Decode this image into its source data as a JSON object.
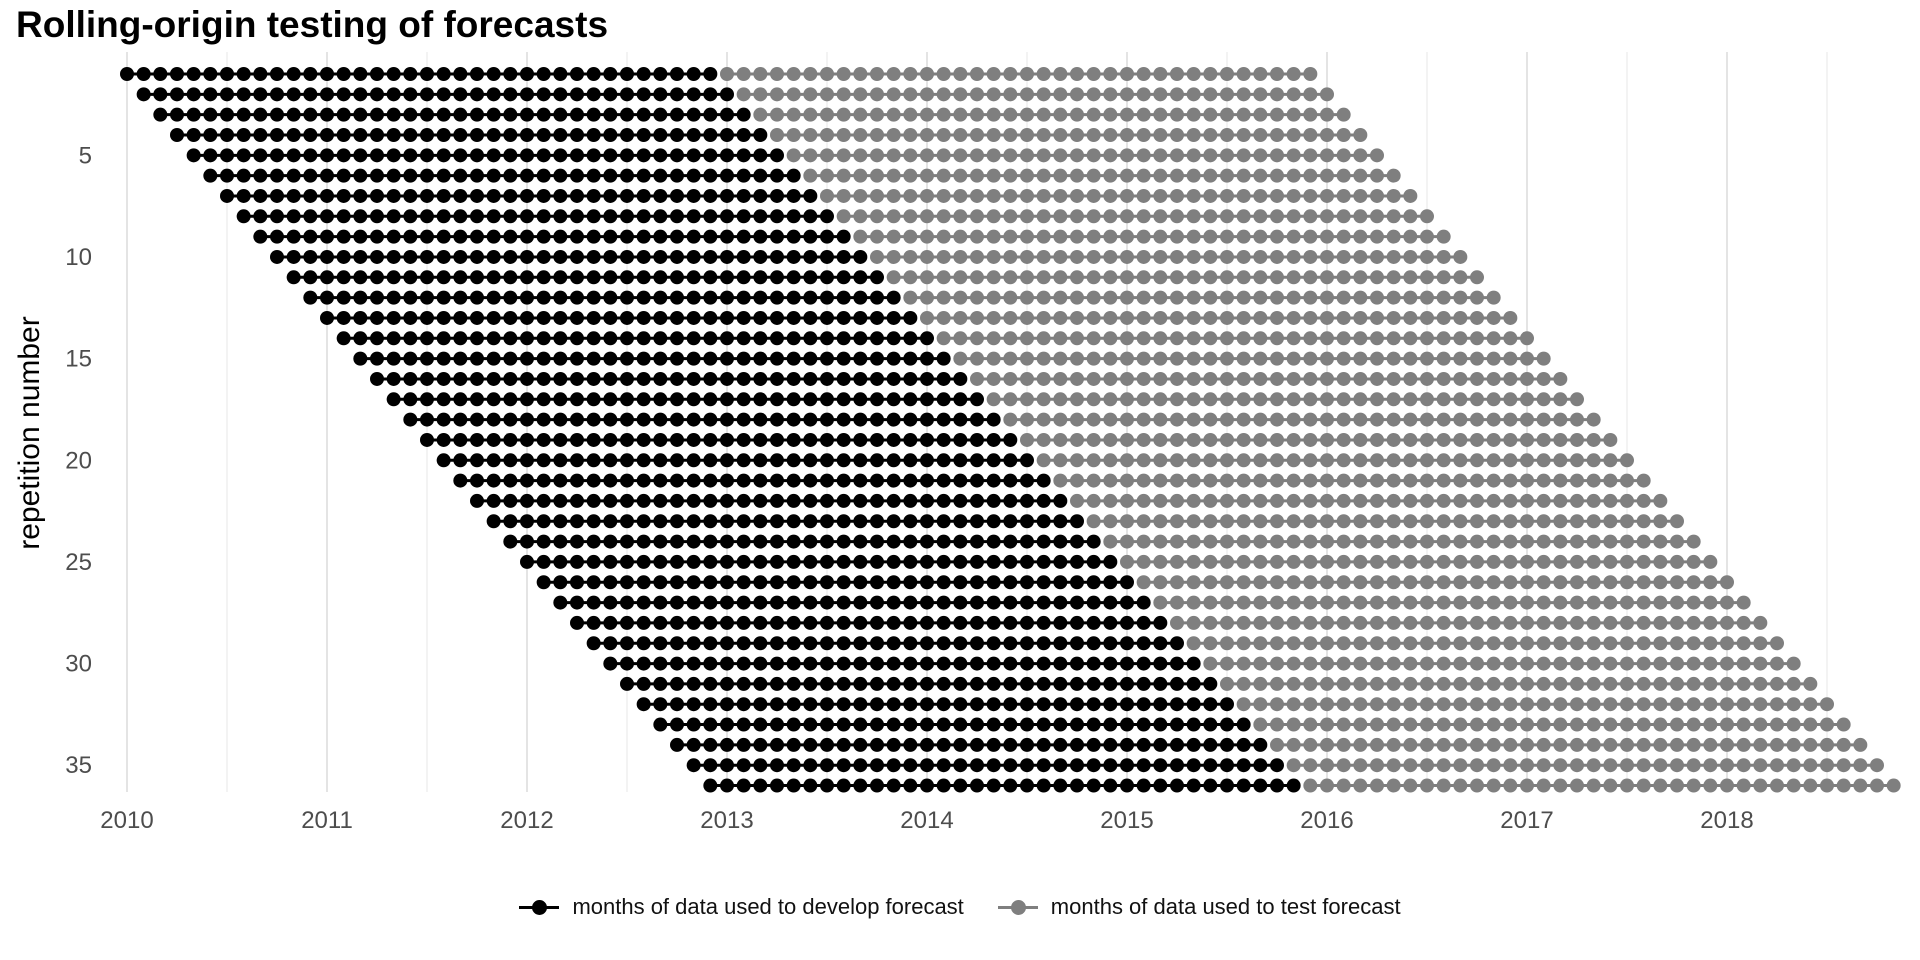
{
  "title": "Rolling-origin testing of forecasts",
  "y_axis": {
    "title": "repetition number",
    "tick_labels": [
      "5",
      "10",
      "15",
      "20",
      "25",
      "30",
      "35"
    ]
  },
  "x_axis": {
    "tick_labels": [
      "2010",
      "2011",
      "2012",
      "2013",
      "2014",
      "2015",
      "2016",
      "2017",
      "2018"
    ]
  },
  "legend": {
    "develop": {
      "label": "months of data used to develop forecast",
      "color": "#000000"
    },
    "test": {
      "label": "months of data used to test forecast",
      "color": "#7f7f7f"
    }
  },
  "colors": {
    "develop": "#000000",
    "test": "#7f7f7f",
    "grid_major": "#e4e4e4",
    "grid_minor": "#efefef",
    "tick_label": "#4d4d4d",
    "background": "#ffffff"
  },
  "chart_data": {
    "type": "scatter",
    "title": "Rolling-origin testing of forecasts",
    "xlabel": "",
    "ylabel": "repetition number",
    "x_unit": "month",
    "x_range": [
      "2010-01",
      "2018-11"
    ],
    "x_tick_labels": [
      "2010",
      "2011",
      "2012",
      "2013",
      "2014",
      "2015",
      "2016",
      "2017",
      "2018"
    ],
    "y_tick_labels": [
      5,
      10,
      15,
      20,
      25,
      30,
      35
    ],
    "y_range": [
      1,
      36
    ],
    "grid": "vertical major and minor gridlines only, no horizontal gridlines, white background",
    "legend_position": "bottom-center",
    "repetitions": 36,
    "origin_step_months": 1,
    "develop_months_per_repetition": 36,
    "test_months_per_repetition": 36,
    "series": [
      {
        "name": "months of data used to develop forecast",
        "role": "develop",
        "color": "#000000"
      },
      {
        "name": "months of data used to test forecast",
        "role": "test",
        "color": "#7f7f7f"
      }
    ],
    "rows": [
      {
        "rep": 1,
        "dev": [
          "2010-01",
          "2012-12"
        ],
        "test": [
          "2013-01",
          "2015-12"
        ]
      },
      {
        "rep": 2,
        "dev": [
          "2010-02",
          "2013-01"
        ],
        "test": [
          "2013-02",
          "2016-01"
        ]
      },
      {
        "rep": 3,
        "dev": [
          "2010-03",
          "2013-02"
        ],
        "test": [
          "2013-03",
          "2016-02"
        ]
      },
      {
        "rep": 4,
        "dev": [
          "2010-04",
          "2013-03"
        ],
        "test": [
          "2013-04",
          "2016-03"
        ]
      },
      {
        "rep": 5,
        "dev": [
          "2010-05",
          "2013-04"
        ],
        "test": [
          "2013-05",
          "2016-04"
        ]
      },
      {
        "rep": 6,
        "dev": [
          "2010-06",
          "2013-05"
        ],
        "test": [
          "2013-06",
          "2016-05"
        ]
      },
      {
        "rep": 7,
        "dev": [
          "2010-07",
          "2013-06"
        ],
        "test": [
          "2013-07",
          "2016-06"
        ]
      },
      {
        "rep": 8,
        "dev": [
          "2010-08",
          "2013-07"
        ],
        "test": [
          "2013-08",
          "2016-07"
        ]
      },
      {
        "rep": 9,
        "dev": [
          "2010-09",
          "2013-08"
        ],
        "test": [
          "2013-09",
          "2016-08"
        ]
      },
      {
        "rep": 10,
        "dev": [
          "2010-10",
          "2013-09"
        ],
        "test": [
          "2013-10",
          "2016-09"
        ]
      },
      {
        "rep": 11,
        "dev": [
          "2010-11",
          "2013-10"
        ],
        "test": [
          "2013-11",
          "2016-10"
        ]
      },
      {
        "rep": 12,
        "dev": [
          "2010-12",
          "2013-11"
        ],
        "test": [
          "2013-12",
          "2016-11"
        ]
      },
      {
        "rep": 13,
        "dev": [
          "2011-01",
          "2013-12"
        ],
        "test": [
          "2014-01",
          "2016-12"
        ]
      },
      {
        "rep": 14,
        "dev": [
          "2011-02",
          "2014-01"
        ],
        "test": [
          "2014-02",
          "2017-01"
        ]
      },
      {
        "rep": 15,
        "dev": [
          "2011-03",
          "2014-02"
        ],
        "test": [
          "2014-03",
          "2017-02"
        ]
      },
      {
        "rep": 16,
        "dev": [
          "2011-04",
          "2014-03"
        ],
        "test": [
          "2014-04",
          "2017-03"
        ]
      },
      {
        "rep": 17,
        "dev": [
          "2011-05",
          "2014-04"
        ],
        "test": [
          "2014-05",
          "2017-04"
        ]
      },
      {
        "rep": 18,
        "dev": [
          "2011-06",
          "2014-05"
        ],
        "test": [
          "2014-06",
          "2017-05"
        ]
      },
      {
        "rep": 19,
        "dev": [
          "2011-07",
          "2014-06"
        ],
        "test": [
          "2014-07",
          "2017-06"
        ]
      },
      {
        "rep": 20,
        "dev": [
          "2011-08",
          "2014-07"
        ],
        "test": [
          "2014-08",
          "2017-07"
        ]
      },
      {
        "rep": 21,
        "dev": [
          "2011-09",
          "2014-08"
        ],
        "test": [
          "2014-09",
          "2017-08"
        ]
      },
      {
        "rep": 22,
        "dev": [
          "2011-10",
          "2014-09"
        ],
        "test": [
          "2014-10",
          "2017-09"
        ]
      },
      {
        "rep": 23,
        "dev": [
          "2011-11",
          "2014-10"
        ],
        "test": [
          "2014-11",
          "2017-10"
        ]
      },
      {
        "rep": 24,
        "dev": [
          "2011-12",
          "2014-11"
        ],
        "test": [
          "2014-12",
          "2017-11"
        ]
      },
      {
        "rep": 25,
        "dev": [
          "2012-01",
          "2014-12"
        ],
        "test": [
          "2015-01",
          "2017-12"
        ]
      },
      {
        "rep": 26,
        "dev": [
          "2012-02",
          "2015-01"
        ],
        "test": [
          "2015-02",
          "2018-01"
        ]
      },
      {
        "rep": 27,
        "dev": [
          "2012-03",
          "2015-02"
        ],
        "test": [
          "2015-03",
          "2018-02"
        ]
      },
      {
        "rep": 28,
        "dev": [
          "2012-04",
          "2015-03"
        ],
        "test": [
          "2015-04",
          "2018-03"
        ]
      },
      {
        "rep": 29,
        "dev": [
          "2012-05",
          "2015-04"
        ],
        "test": [
          "2015-05",
          "2018-04"
        ]
      },
      {
        "rep": 30,
        "dev": [
          "2012-06",
          "2015-05"
        ],
        "test": [
          "2015-06",
          "2018-05"
        ]
      },
      {
        "rep": 31,
        "dev": [
          "2012-07",
          "2015-06"
        ],
        "test": [
          "2015-07",
          "2018-06"
        ]
      },
      {
        "rep": 32,
        "dev": [
          "2012-08",
          "2015-07"
        ],
        "test": [
          "2015-08",
          "2018-07"
        ]
      },
      {
        "rep": 33,
        "dev": [
          "2012-09",
          "2015-08"
        ],
        "test": [
          "2015-09",
          "2018-08"
        ]
      },
      {
        "rep": 34,
        "dev": [
          "2012-10",
          "2015-09"
        ],
        "test": [
          "2015-10",
          "2018-09"
        ]
      },
      {
        "rep": 35,
        "dev": [
          "2012-11",
          "2015-10"
        ],
        "test": [
          "2015-11",
          "2018-10"
        ]
      },
      {
        "rep": 36,
        "dev": [
          "2012-12",
          "2015-11"
        ],
        "test": [
          "2015-12",
          "2018-11"
        ]
      }
    ]
  }
}
